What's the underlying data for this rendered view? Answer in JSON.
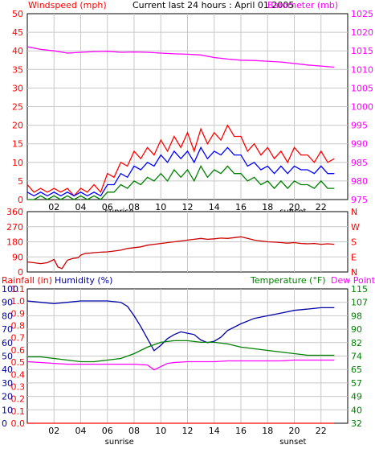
{
  "chart_data": [
    {
      "type": "line",
      "title": "Current last 24 hours : April 01 2005",
      "ylabel_left": "Windspeed (mph)",
      "ylabel_right": "Barometer (mb)",
      "ylim_left": [
        0,
        50
      ],
      "yticks_left": [
        "0",
        "5",
        "10",
        "15",
        "20",
        "25",
        "30",
        "35",
        "40",
        "45",
        "50"
      ],
      "ylim_right": [
        975,
        1025
      ],
      "yticks_right": [
        "975",
        "980",
        "985",
        "990",
        "995",
        "1000",
        "1005",
        "1010",
        "1015",
        "1020",
        "1025"
      ],
      "x_ticks": [
        "02",
        "04",
        "06",
        "08",
        "10",
        "12",
        "14",
        "16",
        "18",
        "20",
        "22"
      ],
      "x_markers": {
        "sunrise": "sunrise",
        "sunset": "sunset",
        "sunrise_hour": 6.9,
        "sunset_hour": 19.9
      },
      "grid": true,
      "colors": {
        "wind_gust": "#ff0000",
        "wind_avg": "#0000ff",
        "wind_low": "#008000",
        "barometer": "#ff00ff",
        "left_label": "#ff0000",
        "right_label": "#ff00ff",
        "tick_left": "#ff0000",
        "tick_right": "#ff00ff"
      },
      "series": [
        {
          "key": "barometer",
          "axis": "right",
          "x": [
            0,
            1,
            2,
            3,
            4,
            5,
            6,
            7,
            8,
            9,
            10,
            11,
            12,
            13,
            14,
            15,
            16,
            17,
            18,
            19,
            20,
            21,
            22,
            23
          ],
          "values": [
            1016.1,
            1015.4,
            1015.0,
            1014.4,
            1014.6,
            1014.8,
            1014.9,
            1014.6,
            1014.7,
            1014.6,
            1014.4,
            1014.2,
            1014.1,
            1013.9,
            1013.2,
            1012.8,
            1012.5,
            1012.4,
            1012.2,
            1012.0,
            1011.6,
            1011.2,
            1010.9,
            1010.6
          ]
        },
        {
          "key": "wind_gust",
          "axis": "left",
          "x": [
            0,
            0.5,
            1,
            1.5,
            2,
            2.5,
            3,
            3.5,
            4,
            4.5,
            5,
            5.5,
            6,
            6.5,
            7,
            7.5,
            8,
            8.5,
            9,
            9.5,
            10,
            10.5,
            11,
            11.5,
            12,
            12.5,
            13,
            13.5,
            14,
            14.5,
            15,
            15.5,
            16,
            16.5,
            17,
            17.5,
            18,
            18.5,
            19,
            19.5,
            20,
            20.5,
            21,
            21.5,
            22,
            22.5,
            23
          ],
          "values": [
            4,
            2,
            3,
            2,
            3,
            2,
            3,
            1,
            3,
            2,
            4,
            2,
            7,
            6,
            10,
            9,
            13,
            11,
            14,
            12,
            16,
            13,
            17,
            14,
            18,
            13,
            19,
            15,
            18,
            16,
            20,
            17,
            17,
            13,
            15,
            12,
            14,
            11,
            13,
            10,
            14,
            12,
            12,
            10,
            13,
            10,
            11
          ]
        },
        {
          "key": "wind_avg",
          "axis": "left",
          "x": [
            0,
            0.5,
            1,
            1.5,
            2,
            2.5,
            3,
            3.5,
            4,
            4.5,
            5,
            5.5,
            6,
            6.5,
            7,
            7.5,
            8,
            8.5,
            9,
            9.5,
            10,
            10.5,
            11,
            11.5,
            12,
            12.5,
            13,
            13.5,
            14,
            14.5,
            15,
            15.5,
            16,
            16.5,
            17,
            17.5,
            18,
            18.5,
            19,
            19.5,
            20,
            20.5,
            21,
            21.5,
            22,
            22.5,
            23
          ],
          "values": [
            2,
            1,
            2,
            1,
            2,
            1,
            2,
            1,
            2,
            1,
            2,
            1,
            4,
            4,
            7,
            6,
            9,
            8,
            10,
            9,
            12,
            10,
            13,
            11,
            13,
            10,
            14,
            11,
            13,
            12,
            14,
            12,
            12,
            9,
            10,
            8,
            9,
            7,
            9,
            7,
            9,
            8,
            8,
            7,
            9,
            7,
            7
          ]
        },
        {
          "key": "wind_low",
          "axis": "left",
          "x": [
            0,
            0.5,
            1,
            1.5,
            2,
            2.5,
            3,
            3.5,
            4,
            4.5,
            5,
            5.5,
            6,
            6.5,
            7,
            7.5,
            8,
            8.5,
            9,
            9.5,
            10,
            10.5,
            11,
            11.5,
            12,
            12.5,
            13,
            13.5,
            14,
            14.5,
            15,
            15.5,
            16,
            16.5,
            17,
            17.5,
            18,
            18.5,
            19,
            19.5,
            20,
            20.5,
            21,
            21.5,
            22,
            22.5,
            23
          ],
          "values": [
            0,
            0,
            1,
            0,
            1,
            0,
            1,
            0,
            1,
            0,
            1,
            0,
            2,
            2,
            4,
            3,
            5,
            4,
            6,
            5,
            7,
            5,
            8,
            6,
            8,
            5,
            9,
            6,
            8,
            7,
            9,
            7,
            7,
            5,
            6,
            4,
            5,
            3,
            5,
            3,
            5,
            4,
            4,
            3,
            5,
            3,
            3
          ]
        }
      ]
    },
    {
      "type": "line",
      "ylim_left": [
        0,
        360
      ],
      "yticks_left": [
        "0",
        "90",
        "180",
        "270",
        "360"
      ],
      "yticks_right": [
        "N",
        "E",
        "S",
        "W",
        "N"
      ],
      "x_ticks": [],
      "grid": true,
      "colors": {
        "direction": "#cc0000",
        "tick_left": "#ff0000",
        "tick_right": "#ff0000"
      },
      "series": [
        {
          "key": "direction",
          "axis": "left",
          "x": [
            0,
            0.5,
            1,
            1.5,
            2,
            2.3,
            2.6,
            3,
            3.4,
            3.8,
            4,
            4.3,
            4.6,
            5,
            5.5,
            6,
            6.5,
            7,
            7.5,
            8,
            8.5,
            9,
            9.5,
            10,
            10.5,
            11,
            11.5,
            12,
            12.5,
            13,
            13.5,
            14,
            14.5,
            15,
            15.5,
            16,
            16.5,
            17,
            17.5,
            18,
            18.5,
            19,
            19.5,
            20,
            20.5,
            21,
            21.5,
            22,
            22.5,
            23
          ],
          "values": [
            60,
            55,
            50,
            55,
            75,
            30,
            20,
            70,
            80,
            85,
            100,
            110,
            112,
            115,
            118,
            120,
            125,
            130,
            140,
            145,
            150,
            160,
            165,
            170,
            175,
            180,
            185,
            190,
            195,
            200,
            195,
            198,
            202,
            200,
            205,
            210,
            200,
            190,
            185,
            180,
            178,
            175,
            172,
            175,
            170,
            168,
            170,
            165,
            168,
            165
          ]
        }
      ]
    },
    {
      "type": "line",
      "ylabel_left": "Rainfall (in)",
      "ylabel_left_2": "Humidity (%)",
      "ylabel_right": "Temperature (°F)",
      "ylabel_right_2": "Dew Point",
      "ylim_left": [
        0,
        100
      ],
      "yticks_left_rain": [
        "0.0",
        "0.1",
        "0.2",
        "0.3",
        "0.4",
        "0.5",
        "0.6",
        "0.7",
        "0.8",
        "0.9",
        "1.0",
        "1.1"
      ],
      "yticks_left_hum": [
        "0",
        "10",
        "20",
        "30",
        "40",
        "50",
        "60",
        "70",
        "80",
        "90",
        "100"
      ],
      "ylim_right": [
        32,
        115
      ],
      "yticks_right": [
        "32",
        "40",
        "49",
        "57",
        "65",
        "74",
        "82",
        "90",
        "98",
        "107",
        "115"
      ],
      "x_ticks": [
        "02",
        "04",
        "06",
        "08",
        "10",
        "12",
        "14",
        "16",
        "18",
        "20",
        "22"
      ],
      "x_markers": {
        "sunrise": "sunrise",
        "sunset": "sunset",
        "sunrise_hour": 6.9,
        "sunset_hour": 19.9
      },
      "grid": true,
      "colors": {
        "humidity": "#0000aa",
        "temperature": "#008000",
        "dewpoint": "#ff00ff",
        "rain": "#ff0000",
        "rain_label": "#ff0000",
        "hum_label": "#000099",
        "temp_label": "#008000",
        "dew_label": "#ff00ff"
      },
      "series": [
        {
          "key": "humidity",
          "axis": "left",
          "x": [
            0,
            1,
            2,
            3,
            4,
            5,
            6,
            7,
            7.5,
            8,
            8.5,
            9,
            9.5,
            10,
            10.5,
            11,
            11.5,
            12,
            12.5,
            13,
            13.5,
            14,
            14.5,
            15,
            16,
            17,
            18,
            19,
            20,
            21,
            22,
            23
          ],
          "values": [
            91,
            90,
            89,
            90,
            91,
            91,
            91,
            90,
            87,
            80,
            72,
            63,
            54,
            58,
            63,
            66,
            68,
            67,
            66,
            62,
            60,
            61,
            64,
            69,
            74,
            78,
            80,
            82,
            84,
            85,
            86,
            86
          ]
        },
        {
          "key": "temperature",
          "axis": "right",
          "x": [
            0,
            1,
            2,
            3,
            4,
            5,
            6,
            7,
            8,
            9,
            10,
            11,
            12,
            13,
            14,
            15,
            16,
            17,
            18,
            19,
            20,
            21,
            22,
            23
          ],
          "values": [
            73,
            73,
            72,
            71,
            70,
            70,
            71,
            72,
            75,
            79,
            82,
            83,
            83,
            82,
            82,
            81,
            79,
            78,
            77,
            76,
            75,
            74,
            74,
            74
          ]
        },
        {
          "key": "dewpoint",
          "axis": "right",
          "x": [
            0,
            1,
            2,
            3,
            4,
            5,
            6,
            7,
            8,
            9,
            9.5,
            10,
            10.5,
            11,
            12,
            13,
            14,
            15,
            16,
            17,
            18,
            19,
            20,
            21,
            22,
            23
          ],
          "values": [
            70,
            69.5,
            69,
            68.5,
            68.5,
            68.5,
            68.5,
            68.5,
            68.5,
            68,
            65,
            67,
            69,
            69.5,
            70,
            70,
            70,
            70.5,
            70.5,
            70.5,
            70.5,
            70.5,
            71,
            71,
            71,
            71
          ]
        },
        {
          "key": "rain",
          "axis": "left",
          "x": [
            0,
            23
          ],
          "values": [
            0,
            0
          ]
        }
      ]
    }
  ]
}
